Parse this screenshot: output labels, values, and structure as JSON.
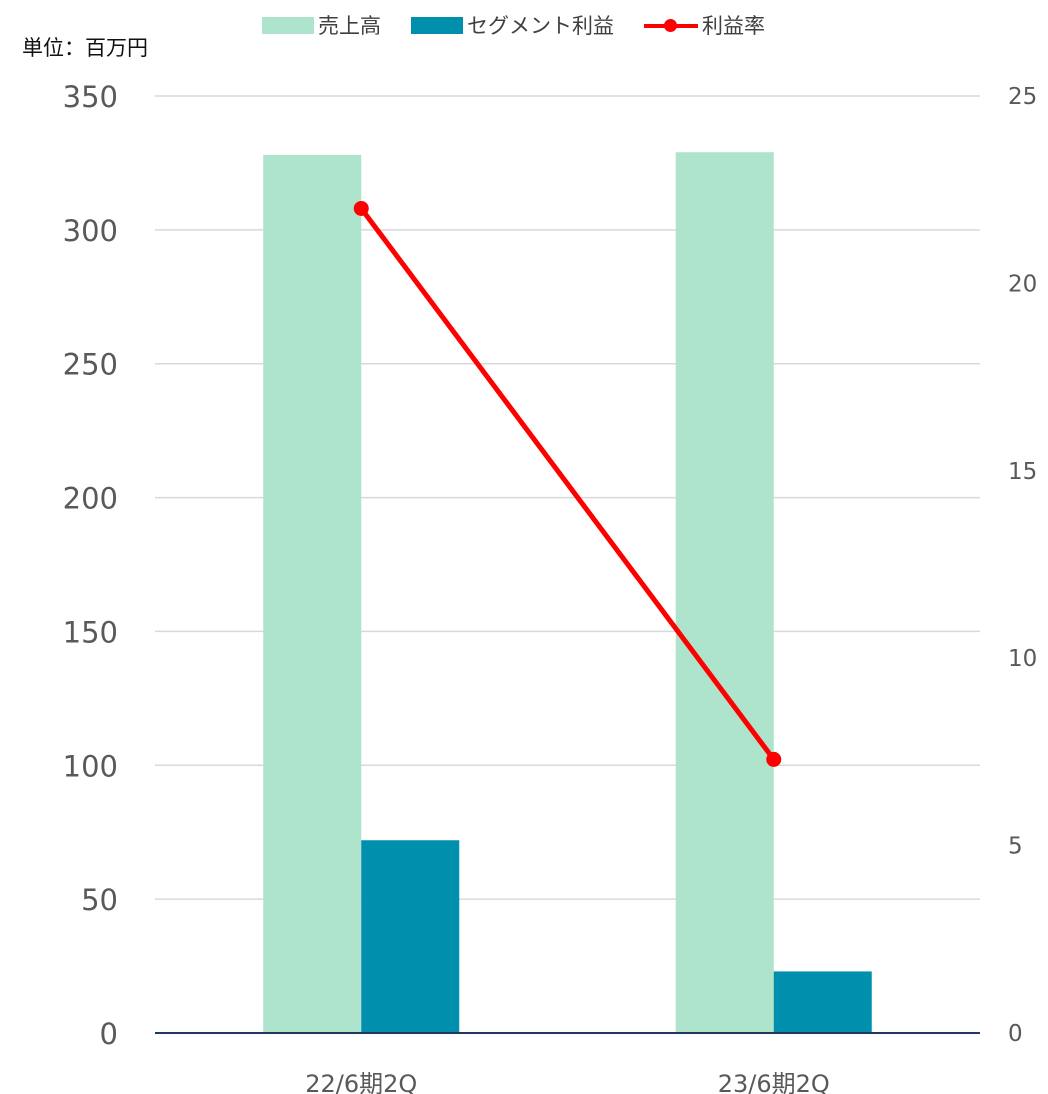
{
  "unit_label": "単位：百万円",
  "legend": {
    "sales": "売上高",
    "profit": "セグメント利益",
    "rate": "利益率"
  },
  "colors": {
    "sales": "#aee4cb",
    "profit": "#0090ae",
    "rate": "#ff0000",
    "grid": "#d9d9d9",
    "axis": "#1f3864",
    "text": "#595959"
  },
  "chart_data": {
    "type": "bar",
    "categories": [
      "22/6期2Q",
      "23/6期2Q"
    ],
    "series": [
      {
        "name": "売上高",
        "type": "bar",
        "axis": "left",
        "values": [
          328,
          329
        ]
      },
      {
        "name": "セグメント利益",
        "type": "bar",
        "axis": "left",
        "values": [
          72,
          23
        ]
      },
      {
        "name": "利益率",
        "type": "line",
        "axis": "right",
        "values": [
          22.0,
          7.3
        ]
      }
    ],
    "ylim": [
      0,
      350
    ],
    "yticks": [
      "0",
      "50",
      "100",
      "150",
      "200",
      "250",
      "300",
      "350"
    ],
    "y2lim": [
      0,
      25
    ],
    "y2ticks": [
      "0",
      "5",
      "10",
      "15",
      "20",
      "25"
    ],
    "grid": true,
    "legend_position": "top"
  }
}
